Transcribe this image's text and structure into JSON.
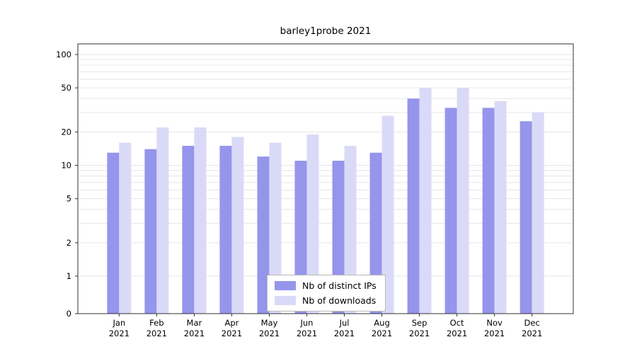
{
  "chart_data": {
    "type": "bar",
    "title": "barley1probe 2021",
    "categories": [
      "Jan",
      "Feb",
      "Mar",
      "Apr",
      "May",
      "Jun",
      "Jul",
      "Aug",
      "Sep",
      "Oct",
      "Nov",
      "Dec"
    ],
    "year_label": "2021",
    "series": [
      {
        "name": "Nb of distinct IPs",
        "color": "#9595ec",
        "values": [
          13,
          14,
          15,
          15,
          12,
          11,
          11,
          13,
          40,
          33,
          33,
          25
        ]
      },
      {
        "name": "Nb of downloads",
        "color": "#dadaf8",
        "values": [
          16,
          22,
          22,
          18,
          16,
          19,
          15,
          28,
          50,
          50,
          38,
          30
        ]
      }
    ],
    "yscale": "symlog",
    "yticks": [
      0,
      1,
      2,
      5,
      10,
      20,
      50,
      100
    ],
    "ylim": [
      0,
      130
    ],
    "grid": true,
    "legend_position": "lower center",
    "colors": {
      "grid": "#e6e6e6",
      "axis": "#333333",
      "background": "#ffffff"
    }
  }
}
